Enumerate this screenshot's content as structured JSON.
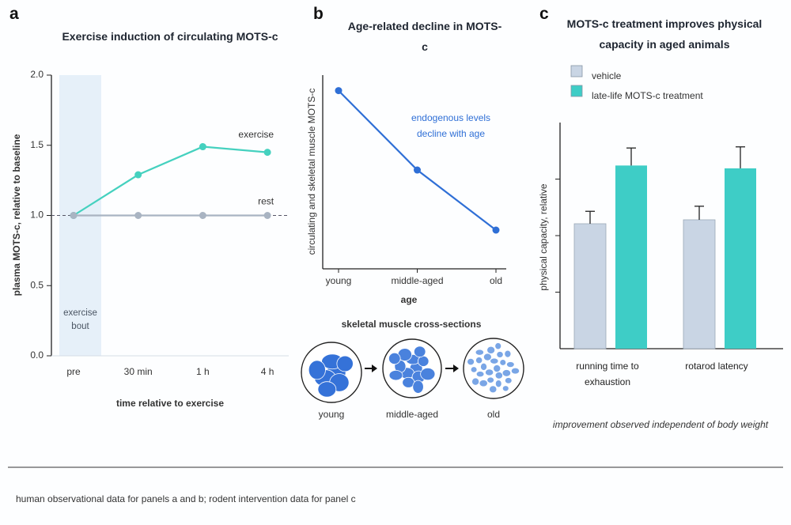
{
  "panel_labels": [
    "a",
    "b",
    "c"
  ],
  "chart_data": [
    {
      "type": "line",
      "title": "Exercise induction of circulating MOTS-c",
      "x_label": "time relative to exercise",
      "y_label": "plasma MOTS-c, relative to baseline",
      "categories": [
        "pre",
        "30 min",
        "1 h",
        "4 h"
      ],
      "series": [
        {
          "name": "exercise",
          "color": "#45d1bf",
          "values": [
            1.0,
            1.29,
            1.49,
            1.45
          ]
        },
        {
          "name": "rest",
          "color": "#a9b4c2",
          "values": [
            1.0,
            1.0,
            1.0,
            1.0
          ]
        }
      ],
      "ylim": [
        0,
        2
      ],
      "yticks": [
        {
          "value": 0,
          "label": "0.0"
        },
        {
          "value": 0.5,
          "label": "0.5"
        },
        {
          "value": 1,
          "label": "1.0"
        },
        {
          "value": 1.5,
          "label": "1.5"
        },
        {
          "value": 2,
          "label": "2.0"
        }
      ],
      "reference_line": 1,
      "shaded_label": "exercise bout"
    },
    {
      "type": "line",
      "title": "Age-related decline in MOTS-c",
      "x_label": "age",
      "y_label": "circulating and skeletal muscle MOTS-c",
      "categories": [
        "young",
        "middle-aged",
        "old"
      ],
      "color": "#2f6fd6",
      "values": [
        0.92,
        0.51,
        0.2
      ],
      "ylim": [
        0,
        1
      ],
      "annotation": "endogenous levels decline with age"
    },
    {
      "type": "bar",
      "title": "MOTS-c treatment improves physical capacity in aged animals",
      "y_label": "physical capacity, relative",
      "categories": [
        "running time to exhaustion",
        "rotarod latency"
      ],
      "series": [
        {
          "name": "vehicle",
          "color": "#c9d5e4",
          "values": [
            2.21,
            2.28
          ],
          "errors": [
            0.22,
            0.24
          ]
        },
        {
          "name": "late-life MOTS-c treatment",
          "color": "#3ecdc6",
          "values": [
            3.24,
            3.19
          ],
          "errors": [
            0.31,
            0.38
          ]
        }
      ],
      "ylim": [
        0,
        4
      ],
      "yticks": [
        1,
        2,
        3
      ],
      "tick_labels": false,
      "note": "improvement observed independent of body weight"
    }
  ],
  "cross_sections": {
    "title": "skeletal muscle cross-sections",
    "labels": [
      "young",
      "middle-aged",
      "old"
    ]
  },
  "footnote": "human observational data for panels a and b; rodent intervention data for panel c"
}
